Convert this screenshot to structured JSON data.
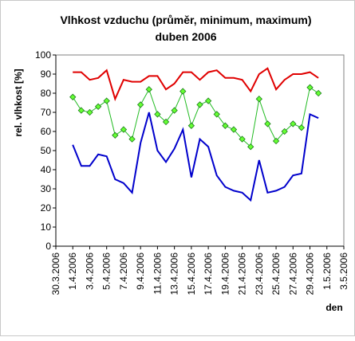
{
  "chart_data": {
    "type": "line",
    "title": "Vlhkost vzduchu (průměr, minimum, maximum)",
    "subtitle": "duben 2006",
    "ylabel": "rel. vlhkost [%]",
    "xlabel": "den",
    "ylim": [
      0,
      100
    ],
    "yticks": [
      0,
      10,
      20,
      30,
      40,
      50,
      60,
      70,
      80,
      90,
      100
    ],
    "xticks": [
      "30.3.2006",
      "1.4.2006",
      "3.4.2006",
      "5.4.2006",
      "7.4.2006",
      "9.4.2006",
      "11.4.2006",
      "13.4.2006",
      "15.4.2006",
      "17.4.2006",
      "19.4.2006",
      "21.4.2006",
      "23.4.2006",
      "25.4.2006",
      "27.4.2006",
      "29.4.2006",
      "1.5.2006",
      "3.5.2006"
    ],
    "x_first_day_index": 2,
    "grid": false,
    "legend": "none",
    "series": [
      {
        "color": "#e00000",
        "marker": "none",
        "values": [
          91,
          91,
          87,
          88,
          92,
          77,
          87,
          86,
          86,
          89,
          89,
          82,
          85,
          91,
          91,
          87,
          91,
          92,
          88,
          88,
          87,
          81,
          90,
          93,
          82,
          87,
          90,
          90,
          91,
          88
        ]
      },
      {
        "color": "#22bb22",
        "marker": "diamond",
        "marker_fill": "#66ff33",
        "values": [
          78,
          71,
          70,
          73,
          76,
          58,
          61,
          56,
          74,
          82,
          69,
          65,
          71,
          81,
          63,
          74,
          76,
          69,
          63,
          61,
          56,
          52,
          77,
          64,
          55,
          60,
          64,
          62,
          83,
          80
        ]
      },
      {
        "color": "#0000cc",
        "marker": "none",
        "values": [
          53,
          42,
          42,
          48,
          47,
          35,
          33,
          28,
          54,
          70,
          50,
          44,
          51,
          61,
          36,
          56,
          52,
          37,
          31,
          29,
          28,
          24,
          45,
          28,
          29,
          31,
          37,
          38,
          69,
          67
        ]
      }
    ]
  }
}
